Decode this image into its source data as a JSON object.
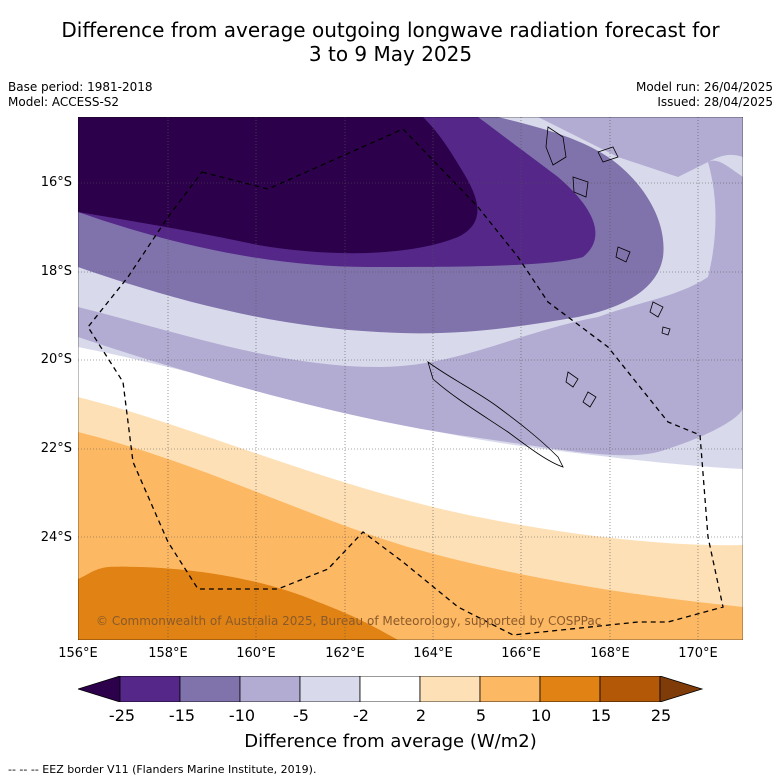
{
  "title_line1": "Difference from average outgoing longwave radiation forecast for",
  "title_line2": "3 to 9 May 2025",
  "meta": {
    "base_period": "Base period: 1981-2018",
    "model": "Model: ACCESS-S2",
    "model_run": "Model run: 26/04/2025",
    "issued": "Issued: 28/04/2025"
  },
  "map": {
    "lat_ticks": [
      "16°S",
      "18°S",
      "20°S",
      "22°S",
      "24°S"
    ],
    "lon_ticks": [
      "156°E",
      "158°E",
      "160°E",
      "162°E",
      "164°E",
      "166°E",
      "168°E",
      "170°E"
    ],
    "copyright": "© Commonwealth of Australia 2025, Bureau of Meteorology, supported by COSPPac"
  },
  "colorbar": {
    "ticks": [
      "-25",
      "-15",
      "-10",
      "-5",
      "-2",
      "2",
      "5",
      "10",
      "15",
      "25"
    ],
    "label": "Difference from average (W/m2)",
    "colors": [
      "#2d004b",
      "#542788",
      "#8073ac",
      "#b2abd2",
      "#d8daeb",
      "#ffffff",
      "#fee0b6",
      "#fdb863",
      "#e08214",
      "#b35806",
      "#7f3b08"
    ]
  },
  "footnote": "-- -- -- EEZ border V11 (Flanders Marine Institute, 2019)."
}
